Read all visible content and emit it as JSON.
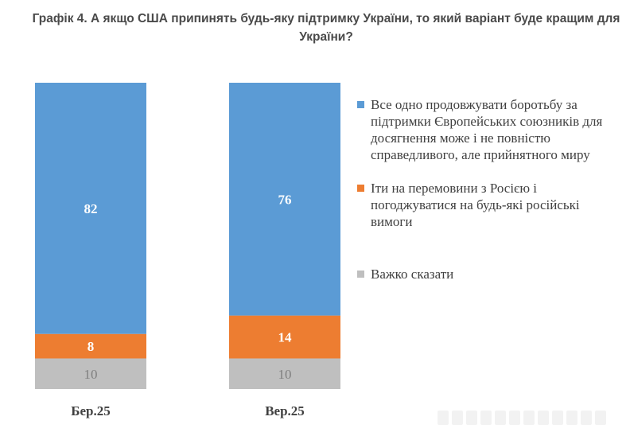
{
  "title": "Графік 4. А якщо США припинять будь-яку підтримку України, то який варіант буде кращим для України?",
  "colors": {
    "blue": "#5b9bd5",
    "orange": "#ed7d31",
    "gray": "#bfbfbf"
  },
  "chart_data": {
    "type": "bar",
    "stacked": true,
    "categories": [
      "Бер.25",
      "Вер.25"
    ],
    "series": [
      {
        "name": "Важко сказати",
        "color": "#bfbfbf",
        "values": [
          10,
          10
        ],
        "labels": [
          "10",
          "10"
        ]
      },
      {
        "name": "Іти на перемовини з Росією і погоджуватися на будь-які російські вимоги",
        "color": "#ed7d31",
        "values": [
          8,
          14
        ],
        "labels": [
          "8",
          "14"
        ]
      },
      {
        "name": "Все одно продовжувати боротьбу за підтримки Європейських союзників для досягнення може і не повністю справедливого, але прийнятного миру",
        "color": "#5b9bd5",
        "values": [
          82,
          76
        ],
        "labels": [
          "82",
          "76"
        ]
      }
    ],
    "ylim": [
      0,
      100
    ],
    "grid": false,
    "legend_position": "right"
  },
  "legend": [
    {
      "label": "Все одно продовжувати боротьбу за підтримки Європейських союзників для досягнення може і не повністю справедливого, але прийнятного миру",
      "color": "#5b9bd5",
      "icon": "square-swatch"
    },
    {
      "label": "Іти на перемовини з Росією і погоджуватися на будь-які російські вимоги",
      "color": "#ed7d31",
      "icon": "square-swatch"
    },
    {
      "label": "Важко сказати",
      "color": "#bfbfbf",
      "icon": "square-swatch"
    }
  ]
}
